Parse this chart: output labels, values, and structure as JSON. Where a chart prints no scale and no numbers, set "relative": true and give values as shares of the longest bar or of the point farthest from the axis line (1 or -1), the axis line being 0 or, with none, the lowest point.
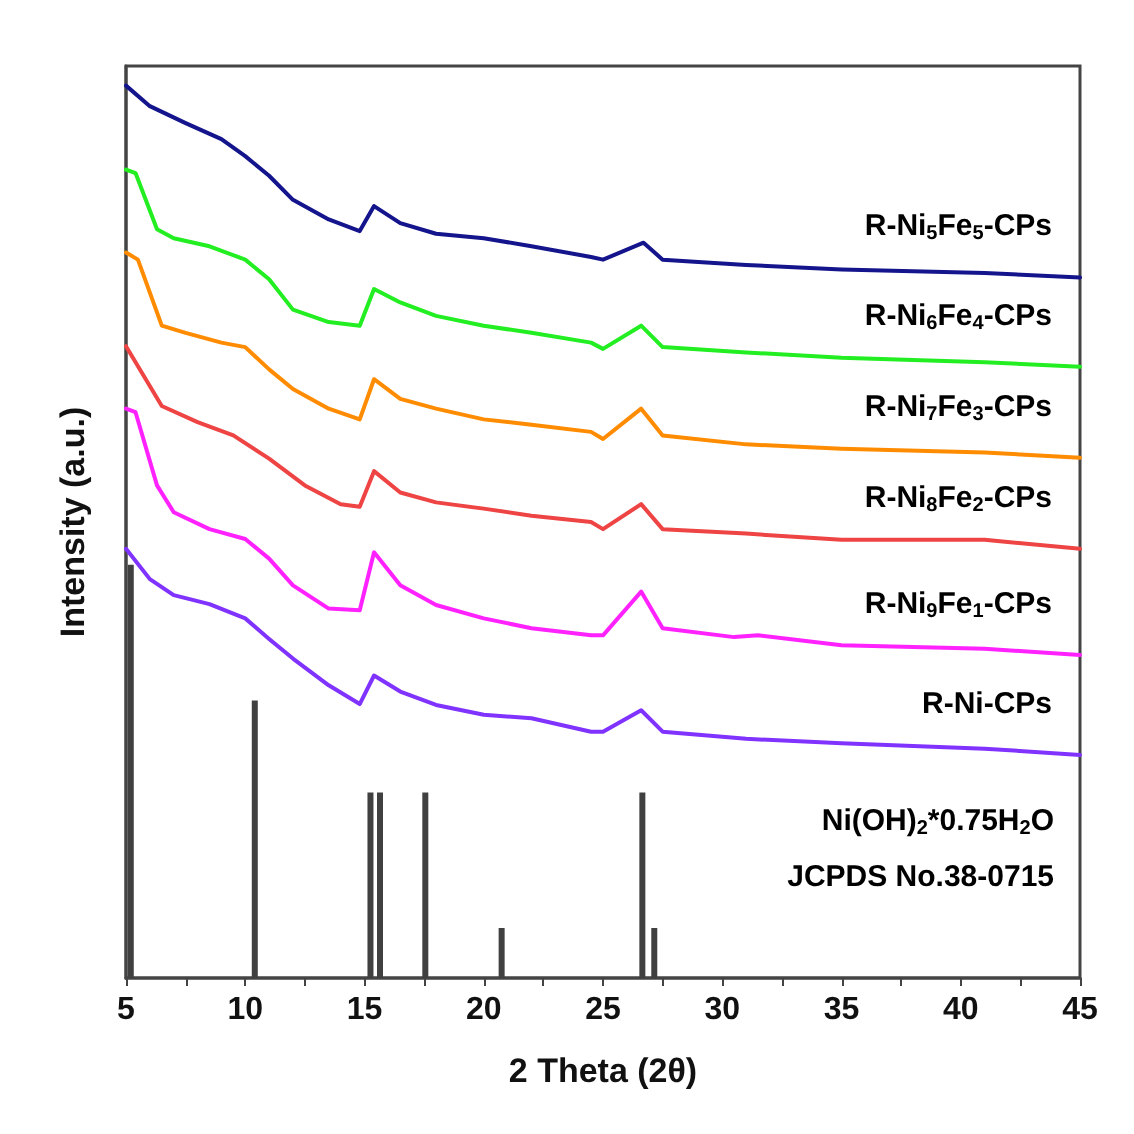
{
  "chart_data": {
    "type": "line",
    "xlabel": "2 Theta (2θ)",
    "ylabel": "Intensity (a.u.)",
    "relative": true,
    "legend": false,
    "grid": false,
    "marker": "none",
    "line_style": "solid",
    "xlim": [
      5,
      45
    ],
    "xticks": [
      5,
      10,
      15,
      20,
      25,
      30,
      35,
      40,
      45
    ],
    "annotations": [
      "Ni(OH)$_{2}$*0.75H$_{2}$O",
      "JCPDS No.38-0715"
    ],
    "series": [
      {
        "name": "R-Ni$_{5}$Fe$_{5}$-CPs",
        "color": "#14148c",
        "x": [
          5,
          6,
          7.5,
          9,
          10,
          11,
          12,
          13.5,
          14.8,
          15.4,
          16.5,
          18,
          20,
          22,
          24.5,
          25,
          26.7,
          27.5,
          31,
          35,
          41,
          45
        ],
        "values": [
          1.0,
          0.977,
          0.958,
          0.94,
          0.921,
          0.899,
          0.872,
          0.85,
          0.837,
          0.865,
          0.846,
          0.834,
          0.829,
          0.82,
          0.808,
          0.805,
          0.824,
          0.805,
          0.799,
          0.794,
          0.79,
          0.785
        ]
      },
      {
        "name": "R-Ni$_{6}$Fe$_{4}$-CPs",
        "color": "#22ee22",
        "x": [
          5,
          5.4,
          6.3,
          7,
          8.5,
          10,
          11,
          12,
          13.5,
          14.8,
          15.4,
          16.5,
          18,
          20,
          22,
          24.5,
          25,
          26.6,
          27.5,
          31,
          35,
          41,
          45
        ],
        "values": [
          0.906,
          0.902,
          0.839,
          0.829,
          0.82,
          0.805,
          0.783,
          0.749,
          0.735,
          0.731,
          0.772,
          0.757,
          0.742,
          0.731,
          0.723,
          0.712,
          0.705,
          0.731,
          0.707,
          0.701,
          0.695,
          0.69,
          0.685
        ]
      },
      {
        "name": "R-Ni$_{7}$Fe$_{3}$-CPs",
        "color": "#ff8c00",
        "x": [
          5,
          5.5,
          6.5,
          7.5,
          9,
          10,
          11,
          12,
          13.5,
          14.8,
          15.4,
          16.5,
          18,
          20,
          22,
          24.5,
          25,
          26.6,
          27.5,
          31,
          35,
          41,
          45
        ],
        "values": [
          0.813,
          0.805,
          0.731,
          0.723,
          0.712,
          0.707,
          0.682,
          0.66,
          0.638,
          0.626,
          0.671,
          0.649,
          0.638,
          0.626,
          0.62,
          0.612,
          0.604,
          0.638,
          0.608,
          0.598,
          0.593,
          0.589,
          0.583
        ]
      },
      {
        "name": "R-Ni$_{8}$Fe$_{2}$-CPs",
        "color": "#ee4444",
        "x": [
          5,
          6.5,
          8,
          9.5,
          11,
          12.5,
          14,
          14.8,
          15.4,
          16.5,
          18,
          20,
          22,
          24.5,
          25,
          26.6,
          27.5,
          31,
          35,
          41,
          45
        ],
        "values": [
          0.708,
          0.641,
          0.623,
          0.608,
          0.582,
          0.552,
          0.531,
          0.528,
          0.568,
          0.544,
          0.533,
          0.526,
          0.518,
          0.511,
          0.503,
          0.531,
          0.503,
          0.498,
          0.491,
          0.491,
          0.481
        ]
      },
      {
        "name": "R-Ni$_{9}$Fe$_{1}$-CPs",
        "color": "#ff22ff",
        "x": [
          5,
          5.4,
          6.3,
          7,
          8.5,
          10,
          11,
          12,
          13.5,
          14.8,
          15.4,
          16.5,
          18,
          20,
          22,
          24.5,
          25,
          26.6,
          27.5,
          30.5,
          31.5,
          35,
          41,
          45
        ],
        "values": [
          0.638,
          0.634,
          0.552,
          0.522,
          0.503,
          0.492,
          0.47,
          0.44,
          0.414,
          0.412,
          0.477,
          0.44,
          0.418,
          0.403,
          0.392,
          0.384,
          0.384,
          0.433,
          0.392,
          0.382,
          0.384,
          0.373,
          0.369,
          0.362
        ]
      },
      {
        "name": "R-Ni-CPs",
        "color": "#8033ff",
        "x": [
          5,
          6,
          7,
          8.5,
          10,
          11,
          12,
          13.5,
          14.8,
          15.4,
          16.5,
          18,
          20,
          22,
          24.5,
          25,
          26.6,
          27.5,
          31,
          35,
          41,
          45
        ],
        "values": [
          0.481,
          0.447,
          0.429,
          0.419,
          0.403,
          0.38,
          0.358,
          0.328,
          0.307,
          0.339,
          0.321,
          0.306,
          0.295,
          0.291,
          0.276,
          0.276,
          0.3,
          0.276,
          0.268,
          0.263,
          0.257,
          0.25
        ]
      },
      {
        "type": "bar",
        "color": "#404040",
        "x": [
          5.2,
          10.4,
          15.25,
          15.65,
          17.55,
          20.75,
          26.65,
          27.15
        ],
        "values": [
          0.463,
          0.311,
          0.208,
          0.208,
          0.208,
          0.056,
          0.208,
          0.056
        ]
      }
    ]
  }
}
